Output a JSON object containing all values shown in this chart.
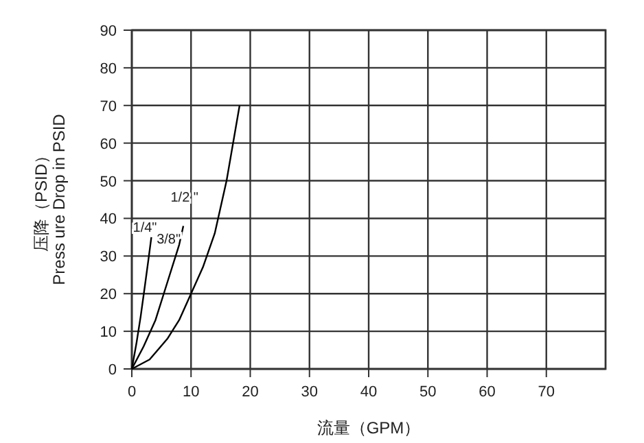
{
  "chart_data": {
    "type": "line",
    "xlabel": "流量（GPM）",
    "ylabel": "压降（PSID）\nPress ure Drop in PSID",
    "xlim": [
      0,
      80
    ],
    "ylim": [
      0,
      90
    ],
    "xticks": [
      0,
      10,
      20,
      30,
      40,
      50,
      60,
      70
    ],
    "yticks": [
      0,
      10,
      20,
      30,
      40,
      50,
      60,
      70,
      80,
      90
    ],
    "grid": true,
    "marker": "none",
    "line_style": "solid",
    "series": [
      {
        "name": "1/4\"",
        "color": "#000000",
        "x": [
          0,
          0.8,
          1.5,
          2.2,
          2.8,
          3.3
        ],
        "values": [
          0,
          7,
          14,
          22,
          29,
          35
        ]
      },
      {
        "name": "3/8\"",
        "color": "#000000",
        "x": [
          0,
          2,
          4,
          6,
          8,
          8.7
        ],
        "values": [
          0,
          6,
          13,
          23,
          33,
          38
        ]
      },
      {
        "name": "1/2 \"",
        "color": "#000000",
        "x": [
          0,
          3,
          6,
          8,
          10,
          12,
          14,
          16,
          18.2
        ],
        "values": [
          0,
          2.5,
          8,
          13,
          20,
          27,
          36,
          50,
          70
        ]
      }
    ]
  }
}
